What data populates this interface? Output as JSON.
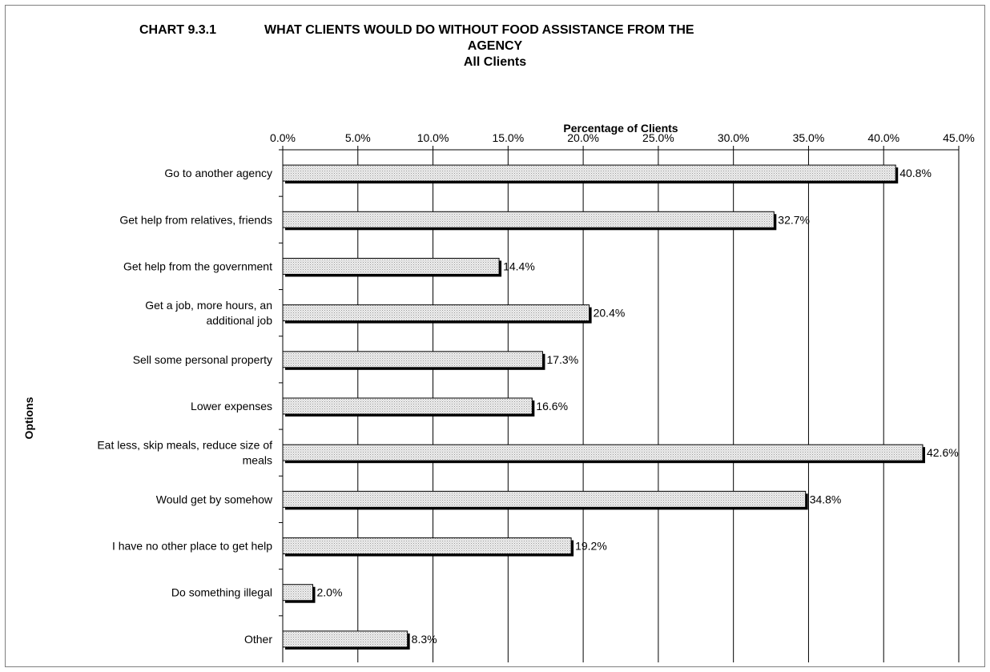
{
  "chart_data": {
    "type": "bar",
    "orientation": "horizontal",
    "title_number": "CHART 9.3.1",
    "title_line1": "WHAT CLIENTS WOULD DO WITHOUT FOOD ASSISTANCE FROM THE",
    "title_line2": "AGENCY",
    "subtitle": "All Clients",
    "xlabel": "Percentage of Clients",
    "ylabel": "Options",
    "xlim": [
      0,
      45
    ],
    "x_ticks": [
      "0.0%",
      "5.0%",
      "10.0%",
      "15.0%",
      "20.0%",
      "25.0%",
      "30.0%",
      "35.0%",
      "40.0%",
      "45.0%"
    ],
    "grid": "vertical",
    "categories": [
      [
        "Go to another agency"
      ],
      [
        "Get help from relatives, friends"
      ],
      [
        "Get help from the government"
      ],
      [
        "Get a job, more hours, an",
        "additional job"
      ],
      [
        "Sell some personal property"
      ],
      [
        "Lower expenses"
      ],
      [
        "Eat less, skip meals, reduce size of",
        "meals"
      ],
      [
        "Would get by somehow"
      ],
      [
        "I have no other place to get help"
      ],
      [
        "Do something illegal"
      ],
      [
        "Other"
      ]
    ],
    "values": [
      40.8,
      32.7,
      14.4,
      20.4,
      17.3,
      16.6,
      42.6,
      34.8,
      19.2,
      2.0,
      8.3
    ],
    "data_labels": [
      "40.8%",
      "32.7%",
      "14.4%",
      "20.4%",
      "17.3%",
      "16.6%",
      "42.6%",
      "34.8%",
      "19.2%",
      "2.0%",
      "8.3%"
    ],
    "bar_fill": "#e6e6e6",
    "bar_shadow": "#000000"
  }
}
